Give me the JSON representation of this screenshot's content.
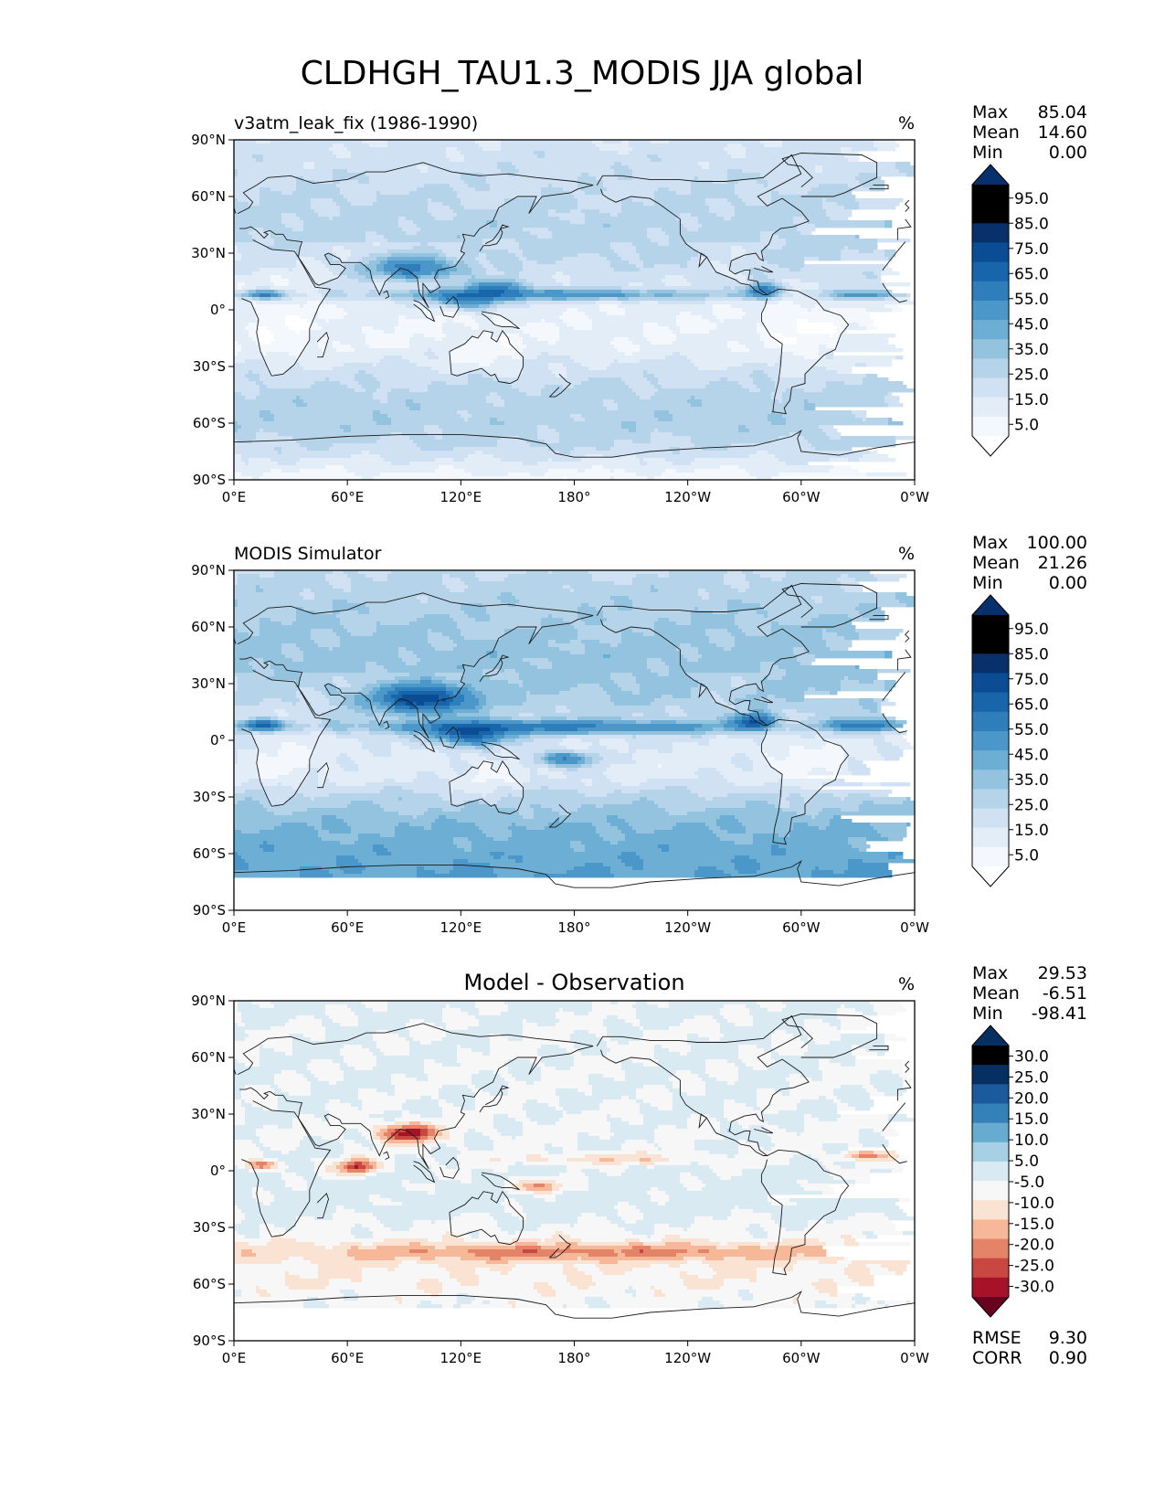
{
  "page": {
    "title": "CLDHGH_TAU1.3_MODIS JJA global"
  },
  "colors": {
    "blues": [
      "#ffffff",
      "#f4f8fd",
      "#e2edf8",
      "#cfe1f2",
      "#b5d4e9",
      "#93c3df",
      "#6daed5",
      "#4b97c9",
      "#2f7ebc",
      "#1865ac",
      "#0b4d94",
      "#08306b"
    ],
    "diverging": [
      "#67001f",
      "#a61328",
      "#c94741",
      "#e58368",
      "#f7b799",
      "#fbe3d4",
      "#f7f7f7",
      "#d9eaf3",
      "#a7d0e4",
      "#68abd0",
      "#3480b9",
      "#1b5a9d",
      "#053061"
    ],
    "coast": "#1a1a1a"
  },
  "chart_data": [
    {
      "type": "heatmap",
      "panel": "test",
      "title_left": "v3atm_leak_fix (1986-1990)",
      "title_center": "",
      "units": "%",
      "stats": {
        "labels": [
          "Max",
          "Mean",
          "Min"
        ],
        "values": [
          "85.04",
          "14.60",
          "0.00"
        ]
      },
      "colorbar": {
        "ticks": [
          "95.0",
          "85.0",
          "75.0",
          "65.0",
          "55.0",
          "45.0",
          "35.0",
          "25.0",
          "15.0",
          "5.0"
        ],
        "levels": [
          0,
          5,
          10,
          15,
          20,
          25,
          30,
          40,
          50,
          60,
          70,
          80,
          90,
          100
        ],
        "extend": "both",
        "palette": "blues"
      },
      "xticks": [
        "0°E",
        "60°E",
        "120°E",
        "180°",
        "120°W",
        "60°W",
        "0°W"
      ],
      "yticks": [
        "90°N",
        "60°N",
        "30°N",
        "0°",
        "30°S",
        "60°S",
        "90°S"
      ],
      "xlim": [
        0,
        360
      ],
      "ylim": [
        -90,
        90
      ],
      "features": [
        {
          "name": "itcz-pacific",
          "lon": 165,
          "lat": 8,
          "lon_width": 190,
          "lat_width": 6,
          "value": 26
        },
        {
          "name": "itcz-atlantic",
          "lon": 335,
          "lat": 8,
          "lon_width": 40,
          "lat_width": 5,
          "value": 24
        },
        {
          "name": "asian-monsoon",
          "lon": 95,
          "lat": 22,
          "lon_width": 45,
          "lat_width": 12,
          "value": 34
        },
        {
          "name": "maritime-continent",
          "lon": 125,
          "lat": 5,
          "lon_width": 35,
          "lat_width": 10,
          "value": 30
        },
        {
          "name": "central-america",
          "lon": 280,
          "lat": 10,
          "lon_width": 18,
          "lat_width": 8,
          "value": 38
        },
        {
          "name": "africa-itcz",
          "lon": 15,
          "lat": 8,
          "lon_width": 22,
          "lat_width": 5,
          "value": 36
        },
        {
          "name": "west-pacific-warm-pool",
          "lon": 140,
          "lat": 12,
          "lon_width": 30,
          "lat_width": 8,
          "value": 28
        }
      ],
      "zonal_background": {
        "lat": [
          -90,
          -72,
          -60,
          -45,
          -30,
          -20,
          -10,
          0,
          10,
          20,
          30,
          45,
          60,
          75,
          90
        ],
        "value": [
          2,
          15,
          18,
          17,
          11,
          6,
          5,
          6,
          9,
          13,
          16,
          17,
          15,
          13,
          11
        ]
      },
      "data_mask_south_of": -90
    },
    {
      "type": "heatmap",
      "panel": "reference",
      "title_left": "MODIS Simulator",
      "title_center": "",
      "units": "%",
      "stats": {
        "labels": [
          "Max",
          "Mean",
          "Min"
        ],
        "values": [
          "100.00",
          "21.26",
          "0.00"
        ]
      },
      "colorbar": {
        "ticks": [
          "95.0",
          "85.0",
          "75.0",
          "65.0",
          "55.0",
          "45.0",
          "35.0",
          "25.0",
          "15.0",
          "5.0"
        ],
        "levels": [
          0,
          5,
          10,
          15,
          20,
          25,
          30,
          40,
          50,
          60,
          70,
          80,
          90,
          100
        ],
        "extend": "both",
        "palette": "blues"
      },
      "xticks": [
        "0°E",
        "60°E",
        "120°E",
        "180°",
        "120°W",
        "60°W",
        "0°W"
      ],
      "yticks": [
        "90°N",
        "60°N",
        "30°N",
        "0°",
        "30°S",
        "60°S",
        "90°S"
      ],
      "xlim": [
        0,
        360
      ],
      "ylim": [
        -90,
        90
      ],
      "features": [
        {
          "name": "itcz-pacific",
          "lon": 170,
          "lat": 7,
          "lon_width": 200,
          "lat_width": 7,
          "value": 30
        },
        {
          "name": "itcz-atlantic",
          "lon": 335,
          "lat": 8,
          "lon_width": 40,
          "lat_width": 6,
          "value": 34
        },
        {
          "name": "asian-monsoon",
          "lon": 100,
          "lat": 22,
          "lon_width": 45,
          "lat_width": 14,
          "value": 55
        },
        {
          "name": "maritime-continent",
          "lon": 125,
          "lat": 3,
          "lon_width": 40,
          "lat_width": 12,
          "value": 42
        },
        {
          "name": "central-america",
          "lon": 275,
          "lat": 10,
          "lon_width": 20,
          "lat_width": 8,
          "value": 45
        },
        {
          "name": "africa-itcz",
          "lon": 15,
          "lat": 8,
          "lon_width": 22,
          "lat_width": 6,
          "value": 42
        },
        {
          "name": "spcz",
          "lon": 175,
          "lat": -10,
          "lon_width": 30,
          "lat_width": 8,
          "value": 32
        }
      ],
      "zonal_background": {
        "lat": [
          -90,
          -72,
          -60,
          -45,
          -30,
          -20,
          -10,
          0,
          10,
          20,
          30,
          45,
          60,
          75,
          90
        ],
        "value": [
          0,
          30,
          28,
          25,
          17,
          9,
          8,
          10,
          14,
          19,
          21,
          22,
          20,
          18,
          15
        ]
      },
      "data_mask_south_of": -72
    },
    {
      "type": "heatmap",
      "panel": "difference",
      "title_left": "",
      "title_center": "Model - Observation",
      "units": "%",
      "stats": {
        "labels": [
          "Max",
          "Mean",
          "Min"
        ],
        "values": [
          "29.53",
          "-6.51",
          "-98.41"
        ]
      },
      "colorbar": {
        "ticks": [
          "30.0",
          "25.0",
          "20.0",
          "15.0",
          "10.0",
          "5.0",
          "-5.0",
          "-10.0",
          "-15.0",
          "-20.0",
          "-25.0",
          "-30.0"
        ],
        "levels": [
          -35,
          -30,
          -25,
          -20,
          -15,
          -10,
          -5,
          5,
          10,
          15,
          20,
          25,
          30,
          35
        ],
        "extend": "both",
        "palette": "diverging"
      },
      "rmse": {
        "label": "RMSE",
        "value": "9.30"
      },
      "corr": {
        "label": "CORR",
        "value": "0.90"
      },
      "xticks": [
        "0°E",
        "60°E",
        "120°E",
        "180°",
        "120°W",
        "60°W",
        "0°W"
      ],
      "yticks": [
        "90°N",
        "60°N",
        "30°N",
        "0°",
        "30°S",
        "60°S",
        "90°S"
      ],
      "xlim": [
        0,
        360
      ],
      "ylim": [
        -90,
        90
      ],
      "features": [
        {
          "name": "asian-monsoon-deficit",
          "lon": 92,
          "lat": 20,
          "lon_width": 30,
          "lat_width": 10,
          "value": -28
        },
        {
          "name": "indian-ocean-deficit",
          "lon": 65,
          "lat": 2,
          "lon_width": 22,
          "lat_width": 8,
          "value": -25
        },
        {
          "name": "africa-itcz-deficit",
          "lon": 15,
          "lat": 3,
          "lon_width": 18,
          "lat_width": 5,
          "value": -20
        },
        {
          "name": "atlantic-itcz-deficit",
          "lon": 335,
          "lat": 8,
          "lon_width": 30,
          "lat_width": 5,
          "value": -16
        },
        {
          "name": "pacific-itcz-deficit",
          "lon": 200,
          "lat": 6,
          "lon_width": 120,
          "lat_width": 6,
          "value": -9
        },
        {
          "name": "spcz-deficit",
          "lon": 160,
          "lat": -8,
          "lon_width": 30,
          "lat_width": 7,
          "value": -16
        },
        {
          "name": "southern-storm-track",
          "lon": 180,
          "lat": -43,
          "lon_width": 300,
          "lat_width": 10,
          "value": -14
        },
        {
          "name": "gulf-of-mexico-excess",
          "lon": 262,
          "lat": 22,
          "lon_width": 8,
          "lat_width": 6,
          "value": 12
        },
        {
          "name": "arabian-excess",
          "lon": 42,
          "lat": 15,
          "lon_width": 6,
          "lat_width": 6,
          "value": 10
        }
      ],
      "zonal_background": {
        "lat": [
          -90,
          -72,
          -60,
          -45,
          -30,
          -20,
          -10,
          0,
          10,
          20,
          30,
          45,
          60,
          75,
          90
        ],
        "value": [
          0,
          -6,
          -9,
          -9,
          -6,
          -3,
          -3,
          -4,
          -5,
          -6,
          -5,
          -5,
          -5,
          -5,
          -4
        ]
      },
      "data_mask_south_of": -72
    }
  ]
}
